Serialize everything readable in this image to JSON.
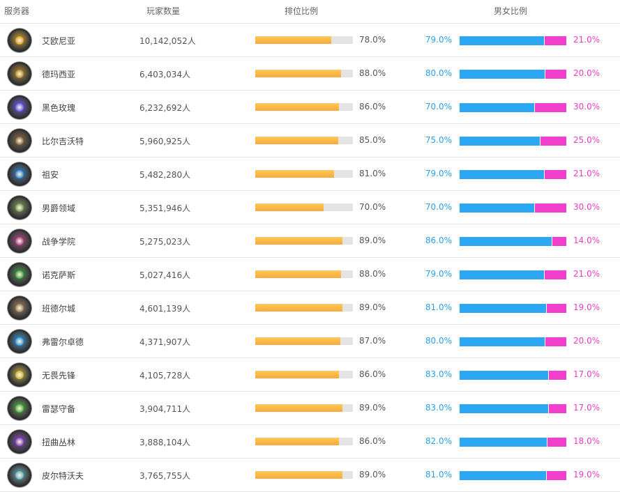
{
  "headers": {
    "server": "服务器",
    "players": "玩家数量",
    "rank": "排位比例",
    "gender": "男女比例"
  },
  "colors": {
    "rank_bar": "#f7b54a",
    "male": "#2ea7f2",
    "female": "#f23fcc",
    "male_text": "#2fa0e8",
    "female_text": "#e83fc2"
  },
  "rows": [
    {
      "name": "艾欧尼亚",
      "players": "10,142,052人",
      "rank": 0.78,
      "rank_label": "78.0%",
      "male": 0.79,
      "male_label": "79.0%",
      "female_label": "21.0%",
      "icon": "ionia-emblem-icon",
      "hue": "#d9a02a"
    },
    {
      "name": "德玛西亚",
      "players": "6,403,034人",
      "rank": 0.88,
      "rank_label": "88.0%",
      "male": 0.8,
      "male_label": "80.0%",
      "female_label": "20.0%",
      "icon": "demacia-emblem-icon",
      "hue": "#b8892e"
    },
    {
      "name": "黑色玫瑰",
      "players": "6,232,692人",
      "rank": 0.86,
      "rank_label": "86.0%",
      "male": 0.7,
      "male_label": "70.0%",
      "female_label": "30.0%",
      "icon": "black-rose-emblem-icon",
      "hue": "#6c5cf0"
    },
    {
      "name": "比尔吉沃特",
      "players": "5,960,925人",
      "rank": 0.85,
      "rank_label": "85.0%",
      "male": 0.75,
      "male_label": "75.0%",
      "female_label": "25.0%",
      "icon": "bilgewater-emblem-icon",
      "hue": "#8a6a44"
    },
    {
      "name": "祖安",
      "players": "5,482,280人",
      "rank": 0.81,
      "rank_label": "81.0%",
      "male": 0.79,
      "male_label": "79.0%",
      "female_label": "21.0%",
      "icon": "zaun-emblem-icon",
      "hue": "#3a8ad0"
    },
    {
      "name": "男爵领域",
      "players": "5,351,946人",
      "rank": 0.7,
      "rank_label": "70.0%",
      "male": 0.7,
      "male_label": "70.0%",
      "female_label": "30.0%",
      "icon": "baron-emblem-icon",
      "hue": "#7a9a5a"
    },
    {
      "name": "战争学院",
      "players": "5,275,023人",
      "rank": 0.89,
      "rank_label": "89.0%",
      "male": 0.86,
      "male_label": "86.0%",
      "female_label": "14.0%",
      "icon": "war-academy-emblem-icon",
      "hue": "#b04a8a"
    },
    {
      "name": "诺克萨斯",
      "players": "5,027,416人",
      "rank": 0.88,
      "rank_label": "88.0%",
      "male": 0.79,
      "male_label": "79.0%",
      "female_label": "21.0%",
      "icon": "noxus-emblem-icon",
      "hue": "#4aa04a"
    },
    {
      "name": "班德尔城",
      "players": "4,601,139人",
      "rank": 0.89,
      "rank_label": "89.0%",
      "male": 0.81,
      "male_label": "81.0%",
      "female_label": "19.0%",
      "icon": "bandle-city-emblem-icon",
      "hue": "#a08060"
    },
    {
      "name": "弗雷尔卓德",
      "players": "4,371,907人",
      "rank": 0.87,
      "rank_label": "87.0%",
      "male": 0.8,
      "male_label": "80.0%",
      "female_label": "20.0%",
      "icon": "freljord-emblem-icon",
      "hue": "#3a9ae0"
    },
    {
      "name": "无畏先锋",
      "players": "4,105,728人",
      "rank": 0.86,
      "rank_label": "86.0%",
      "male": 0.83,
      "male_label": "83.0%",
      "female_label": "17.0%",
      "icon": "vanguard-emblem-icon",
      "hue": "#c8b040"
    },
    {
      "name": "雷瑟守备",
      "players": "3,904,711人",
      "rank": 0.89,
      "rank_label": "89.0%",
      "male": 0.83,
      "male_label": "83.0%",
      "female_label": "17.0%",
      "icon": "rise-guard-emblem-icon",
      "hue": "#5ab04a"
    },
    {
      "name": "扭曲丛林",
      "players": "3,888,104人",
      "rank": 0.86,
      "rank_label": "86.0%",
      "male": 0.82,
      "male_label": "82.0%",
      "female_label": "18.0%",
      "icon": "twisted-treeline-emblem-icon",
      "hue": "#8a4ac0"
    },
    {
      "name": "皮尔特沃夫",
      "players": "3,765,755人",
      "rank": 0.89,
      "rank_label": "89.0%",
      "male": 0.81,
      "male_label": "81.0%",
      "female_label": "19.0%",
      "icon": "piltover-emblem-icon",
      "hue": "#6ab0c0"
    }
  ]
}
